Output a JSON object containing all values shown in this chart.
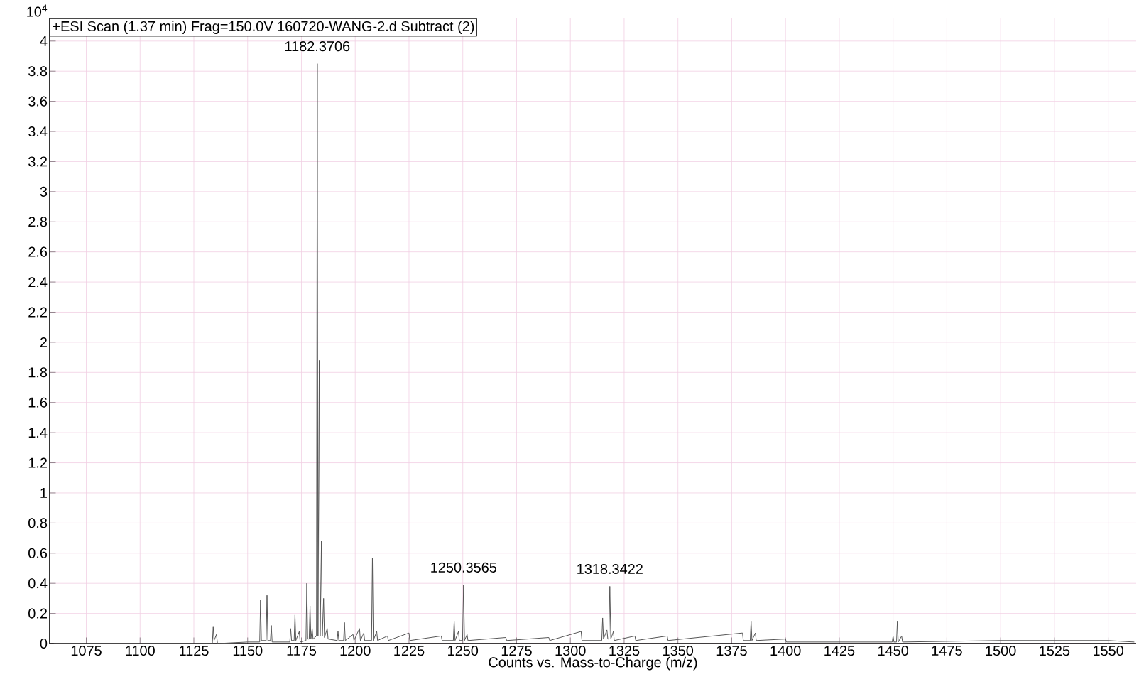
{
  "chart_data": {
    "type": "line",
    "title": "+ESI Scan (1.37 min) Frag=150.0V 160720-WANG-2.d  Subtract (2)",
    "ylabel": "10$^{4}$",
    "xlabel": "Counts vs. Mass-to-Charge (m/z)",
    "xlim": [
      1058,
      1563
    ],
    "xticks": [
      1075,
      1100,
      1125,
      1150,
      1175,
      1200,
      1225,
      1250,
      1275,
      1300,
      1325,
      1350,
      1375,
      1400,
      1425,
      1450,
      1475,
      1500,
      1525,
      1550
    ],
    "ylim": [
      0,
      4.15
    ],
    "yticks": [
      0,
      0.2,
      0.4,
      0.6,
      0.8,
      1,
      1.2,
      1.4,
      1.6,
      1.8,
      2,
      2.2,
      2.4,
      2.6,
      2.8,
      3,
      3.2,
      3.4,
      3.6,
      3.8,
      4
    ],
    "grid": true,
    "annotations": [
      {
        "text": "1182.3706",
        "x": 1182.37,
        "y": 3.85
      },
      {
        "text": "1250.3565",
        "x": 1250.36,
        "y": 0.39
      },
      {
        "text": "1318.3422",
        "x": 1318.34,
        "y": 0.38
      }
    ],
    "series": [
      {
        "color": "#555555",
        "x": [
          1060,
          1130,
          1133.6,
          1134,
          1134.4,
          1135.5,
          1136,
          1150,
          1155.6,
          1156,
          1156.4,
          1158.6,
          1159,
          1159.4,
          1160.6,
          1161,
          1161.4,
          1169.6,
          1170,
          1170.4,
          1171.6,
          1172,
          1172.4,
          1174,
          1174.4,
          1177.1,
          1177.5,
          1177.9,
          1178.6,
          1179,
          1179.4,
          1180,
          1180.4,
          1182,
          1182.37,
          1182.7,
          1183.3,
          1183.7,
          1184.3,
          1184.7,
          1185.3,
          1185.7,
          1187,
          1187.4,
          1191.6,
          1192,
          1192.4,
          1194.6,
          1195,
          1195.4,
          1199,
          1199.4,
          1202,
          1202.4,
          1204,
          1204.4,
          1207.6,
          1208,
          1208.4,
          1210,
          1210.4,
          1215,
          1215.4,
          1225,
          1225.4,
          1240,
          1240.4,
          1245.6,
          1246,
          1246.4,
          1248,
          1248.4,
          1249.9,
          1250.36,
          1250.8,
          1252,
          1252.4,
          1270,
          1270.4,
          1290,
          1290.4,
          1305,
          1305.4,
          1314.6,
          1315,
          1315.4,
          1317,
          1317.4,
          1317.9,
          1318.34,
          1318.8,
          1320,
          1320.4,
          1330,
          1330.4,
          1345,
          1345.4,
          1380,
          1380.4,
          1383.6,
          1384,
          1384.4,
          1386,
          1386.4,
          1400,
          1400.4,
          1449.6,
          1450,
          1450.4,
          1451.6,
          1452,
          1452.4,
          1454,
          1454.4,
          1500,
          1525,
          1550,
          1562
        ],
        "values": [
          0.0,
          0.0,
          0.0,
          0.11,
          0.02,
          0.06,
          0.0,
          0.01,
          0.01,
          0.29,
          0.02,
          0.02,
          0.32,
          0.02,
          0.02,
          0.12,
          0.01,
          0.01,
          0.1,
          0.02,
          0.02,
          0.19,
          0.02,
          0.08,
          0.01,
          0.02,
          0.4,
          0.03,
          0.03,
          0.25,
          0.03,
          0.1,
          0.03,
          0.05,
          3.85,
          0.05,
          1.88,
          0.05,
          0.68,
          0.05,
          0.3,
          0.04,
          0.1,
          0.03,
          0.02,
          0.08,
          0.02,
          0.02,
          0.14,
          0.02,
          0.06,
          0.02,
          0.1,
          0.02,
          0.07,
          0.02,
          0.02,
          0.57,
          0.02,
          0.08,
          0.02,
          0.05,
          0.02,
          0.07,
          0.02,
          0.05,
          0.02,
          0.02,
          0.15,
          0.02,
          0.08,
          0.02,
          0.02,
          0.39,
          0.02,
          0.06,
          0.02,
          0.04,
          0.02,
          0.04,
          0.02,
          0.08,
          0.02,
          0.02,
          0.17,
          0.03,
          0.09,
          0.03,
          0.03,
          0.38,
          0.03,
          0.08,
          0.02,
          0.05,
          0.02,
          0.05,
          0.02,
          0.07,
          0.02,
          0.02,
          0.15,
          0.02,
          0.07,
          0.02,
          0.03,
          0.01,
          0.01,
          0.05,
          0.01,
          0.01,
          0.15,
          0.01,
          0.05,
          0.01,
          0.02,
          0.02,
          0.02,
          0.01
        ]
      }
    ]
  }
}
